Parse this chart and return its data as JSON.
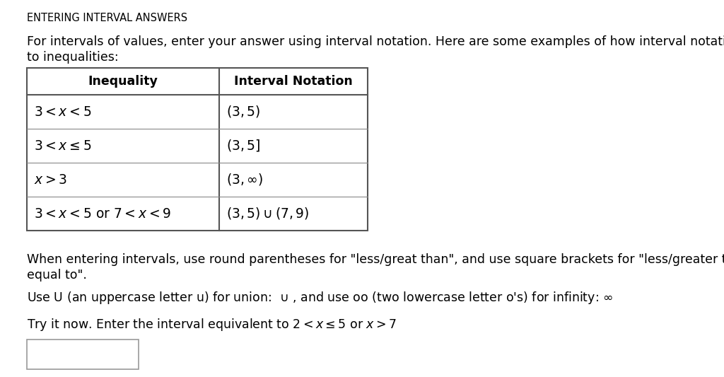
{
  "title": "ENTERING INTERVAL ANSWERS",
  "intro_line1": "For intervals of values, enter your answer using interval notation. Here are some examples of how interval notation relates",
  "intro_line2": "to inequalities:",
  "table_headers": [
    "Inequality",
    "Interval Notation"
  ],
  "row_inequalities": [
    "$3 < x < 5$",
    "$3 < x \\leq 5$",
    "$x > 3$",
    "$3 < x < 5\\ \\mathrm{or}\\ 7 < x < 9$"
  ],
  "row_notations": [
    "$(3,5)$",
    "$(3,5]$",
    "$(3, \\infty)$",
    "$(3, 5) \\cup (7, 9)$"
  ],
  "note1_line1": "When entering intervals, use round parentheses for \"less/great than\", and use square brackets for \"less/greater than or",
  "note1_line2": "equal to\".",
  "note2_text": "Use U (an uppercase letter u) for union:  $\\cup$ , and use oo (two lowercase letter o's) for infinity: $\\infty$",
  "tryit_text": "Try it now. Enter the interval equivalent to $2 < x \\leq 5$ or $x > 7$",
  "bg_color": "#ffffff",
  "text_color": "#000000",
  "title_fontsize": 10.5,
  "body_fontsize": 12.5,
  "table_math_fontsize": 13.5
}
